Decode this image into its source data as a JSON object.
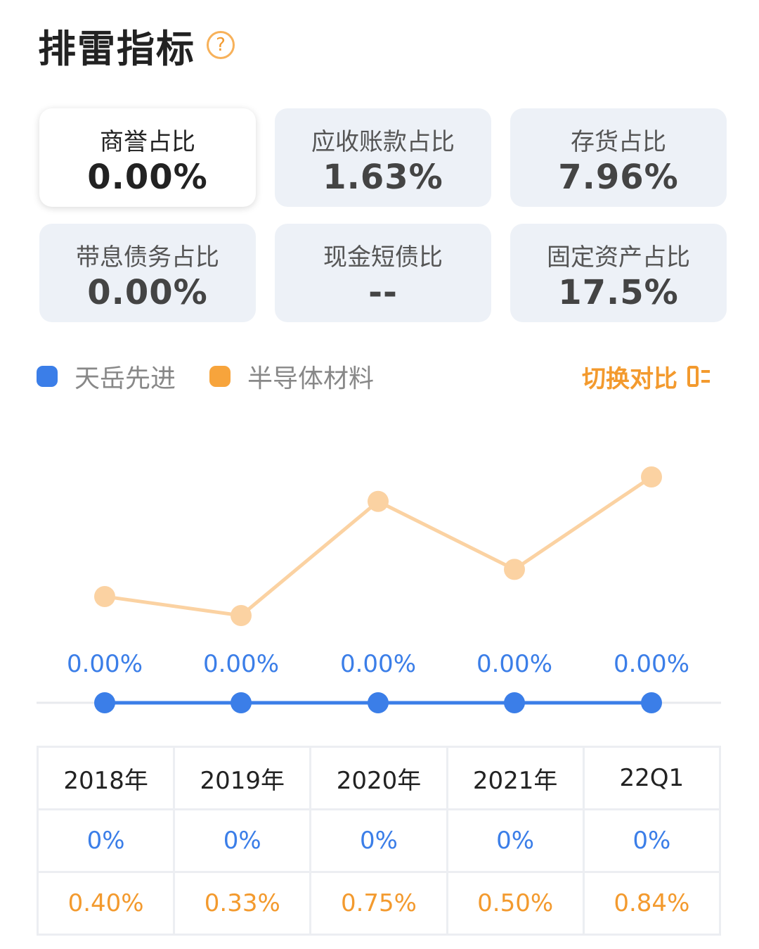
{
  "header": {
    "title": "排雷指标",
    "help_icon": "question-circle-icon"
  },
  "metrics": [
    {
      "label": "商誉占比",
      "value": "0.00%",
      "active": true
    },
    {
      "label": "应收账款占比",
      "value": "1.63%"
    },
    {
      "label": "存货占比",
      "value": "7.96%"
    },
    {
      "label": "带息债务占比",
      "value": "0.00%"
    },
    {
      "label": "现金短债比",
      "value": "--"
    },
    {
      "label": "固定资产占比",
      "value": "17.5%"
    }
  ],
  "legend": {
    "series1": "天岳先进",
    "series2": "半导体材料",
    "switch_label": "切换对比"
  },
  "colors": {
    "blue": "#3b7ee8",
    "orange": "#f7b15a",
    "orange_text": "#f39a2e"
  },
  "chart_data": {
    "type": "line",
    "categories": [
      "2018年",
      "2019年",
      "2020年",
      "2021年",
      "22Q1"
    ],
    "series": [
      {
        "name": "天岳先进",
        "values": [
          0,
          0,
          0,
          0,
          0
        ],
        "labels": [
          "0.00%",
          "0.00%",
          "0.00%",
          "0.00%",
          "0.00%"
        ]
      },
      {
        "name": "半导体材料",
        "values": [
          0.4,
          0.33,
          0.75,
          0.5,
          0.84
        ]
      }
    ]
  },
  "table": {
    "headers": [
      "2018年",
      "2019年",
      "2020年",
      "2021年",
      "22Q1"
    ],
    "row_company": [
      "0%",
      "0%",
      "0%",
      "0%",
      "0%"
    ],
    "row_industry": [
      "0.40%",
      "0.33%",
      "0.75%",
      "0.50%",
      "0.84%"
    ]
  }
}
